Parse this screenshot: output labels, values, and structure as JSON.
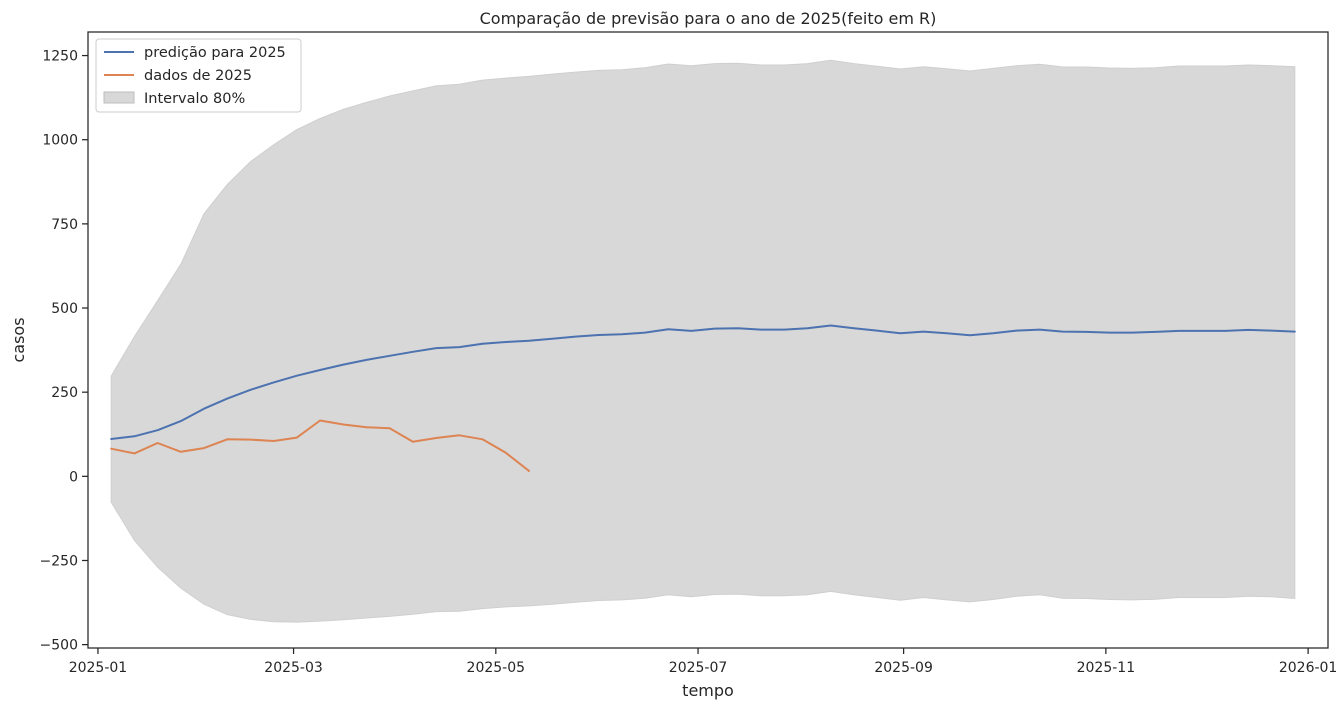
{
  "chart_data": {
    "type": "line",
    "title": "Comparação de previsão para o ano de 2025(feito em R)",
    "xlabel": "tempo",
    "ylabel": "casos",
    "xlim": [
      "2024-12-29",
      "2026-01-07"
    ],
    "ylim": [
      -510,
      1320
    ],
    "xticks": [
      "2025-01",
      "2025-03",
      "2025-05",
      "2025-07",
      "2025-09",
      "2025-11",
      "2026-01"
    ],
    "yticks": [
      1250,
      1000,
      750,
      500,
      250,
      0,
      -250,
      -500
    ],
    "ytick_labels": [
      "1250",
      "1000",
      "750",
      "500",
      "250",
      "0",
      "−250",
      "−500"
    ],
    "grid": false,
    "legend": {
      "position": "top-left",
      "entries": [
        {
          "label": "predição para 2025",
          "color": "#4c72b0",
          "kind": "line"
        },
        {
          "label": "dados de 2025",
          "color": "#dd8452",
          "kind": "line"
        },
        {
          "label": "Intervalo 80%",
          "color": "#d8d8d8",
          "kind": "band"
        }
      ]
    },
    "series": [
      {
        "name": "predição para 2025",
        "color": "#4c72b0",
        "x": [
          "2025-01-05",
          "2025-01-12",
          "2025-01-19",
          "2025-01-26",
          "2025-02-02",
          "2025-02-09",
          "2025-02-16",
          "2025-02-23",
          "2025-03-02",
          "2025-03-09",
          "2025-03-16",
          "2025-03-23",
          "2025-03-30",
          "2025-04-06",
          "2025-04-13",
          "2025-04-20",
          "2025-04-27",
          "2025-05-04",
          "2025-05-11",
          "2025-05-18",
          "2025-05-25",
          "2025-06-01",
          "2025-06-08",
          "2025-06-15",
          "2025-06-22",
          "2025-06-29",
          "2025-07-06",
          "2025-07-13",
          "2025-07-20",
          "2025-07-27",
          "2025-08-03",
          "2025-08-10",
          "2025-08-17",
          "2025-08-24",
          "2025-08-31",
          "2025-09-07",
          "2025-09-14",
          "2025-09-21",
          "2025-09-28",
          "2025-10-05",
          "2025-10-12",
          "2025-10-19",
          "2025-10-26",
          "2025-11-02",
          "2025-11-09",
          "2025-11-16",
          "2025-11-23",
          "2025-11-30",
          "2025-12-07",
          "2025-12-14",
          "2025-12-21",
          "2025-12-28"
        ],
        "values": [
          111,
          119,
          137,
          164,
          201,
          231,
          257,
          279,
          299,
          316,
          332,
          346,
          358,
          370,
          381,
          384,
          394,
          399,
          403,
          409,
          415,
          420,
          422,
          427,
          437,
          432,
          439,
          440,
          436,
          436,
          440,
          448,
          440,
          433,
          425,
          430,
          425,
          419,
          425,
          433,
          436,
          430,
          429,
          427,
          427,
          429,
          432,
          432,
          432,
          435,
          433,
          430
        ]
      },
      {
        "name": "dados de 2025",
        "color": "#dd8452",
        "x": [
          "2025-01-05",
          "2025-01-12",
          "2025-01-19",
          "2025-01-26",
          "2025-02-02",
          "2025-02-09",
          "2025-02-16",
          "2025-02-23",
          "2025-03-02",
          "2025-03-09",
          "2025-03-16",
          "2025-03-23",
          "2025-03-30",
          "2025-04-06",
          "2025-04-13",
          "2025-04-20",
          "2025-04-27",
          "2025-05-04",
          "2025-05-11"
        ],
        "values": [
          82,
          68,
          99,
          73,
          84,
          110,
          109,
          105,
          115,
          166,
          154,
          146,
          143,
          103,
          114,
          122,
          110,
          70,
          16
        ]
      }
    ],
    "band": {
      "name": "Intervalo 80%",
      "color": "#d8d8d8",
      "x": [
        "2025-01-05",
        "2025-01-12",
        "2025-01-19",
        "2025-01-26",
        "2025-02-02",
        "2025-02-09",
        "2025-02-16",
        "2025-02-23",
        "2025-03-02",
        "2025-03-09",
        "2025-03-16",
        "2025-03-23",
        "2025-03-30",
        "2025-04-06",
        "2025-04-13",
        "2025-04-20",
        "2025-04-27",
        "2025-05-04",
        "2025-05-11",
        "2025-05-18",
        "2025-05-25",
        "2025-06-01",
        "2025-06-08",
        "2025-06-15",
        "2025-06-22",
        "2025-06-29",
        "2025-07-06",
        "2025-07-13",
        "2025-07-20",
        "2025-07-27",
        "2025-08-03",
        "2025-08-10",
        "2025-08-17",
        "2025-08-24",
        "2025-08-31",
        "2025-09-07",
        "2025-09-14",
        "2025-09-21",
        "2025-09-28",
        "2025-10-05",
        "2025-10-12",
        "2025-10-19",
        "2025-10-26",
        "2025-11-02",
        "2025-11-09",
        "2025-11-16",
        "2025-11-23",
        "2025-11-30",
        "2025-12-07",
        "2025-12-14",
        "2025-12-21",
        "2025-12-28"
      ],
      "upper": [
        298,
        415,
        522,
        630,
        780,
        867,
        935,
        985,
        1030,
        1063,
        1090,
        1111,
        1130,
        1145,
        1160,
        1165,
        1177,
        1183,
        1188,
        1195,
        1201,
        1206,
        1208,
        1214,
        1225,
        1220,
        1226,
        1227,
        1222,
        1222,
        1226,
        1236,
        1226,
        1218,
        1210,
        1217,
        1211,
        1204,
        1212,
        1220,
        1224,
        1216,
        1216,
        1213,
        1212,
        1214,
        1219,
        1219,
        1219,
        1222,
        1220,
        1217
      ],
      "lower": [
        -77,
        -190,
        -270,
        -332,
        -380,
        -411,
        -425,
        -432,
        -433,
        -430,
        -426,
        -421,
        -416,
        -410,
        -402,
        -401,
        -393,
        -388,
        -385,
        -380,
        -374,
        -369,
        -367,
        -362,
        -352,
        -358,
        -351,
        -350,
        -355,
        -355,
        -352,
        -342,
        -352,
        -360,
        -368,
        -360,
        -367,
        -373,
        -366,
        -356,
        -352,
        -362,
        -363,
        -366,
        -367,
        -365,
        -360,
        -360,
        -360,
        -356,
        -358,
        -363
      ]
    }
  }
}
